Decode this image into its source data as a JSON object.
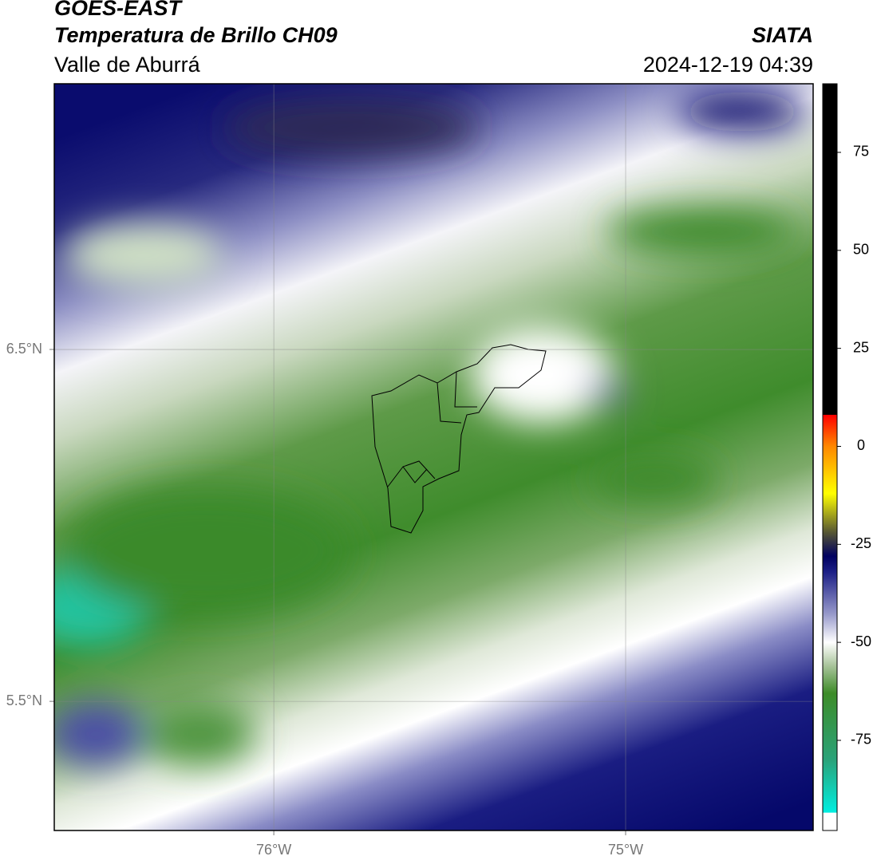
{
  "map": {
    "title": "GOES-EAST",
    "subtitle": "Temperatura de Brillo CH09",
    "region": "Valle de Aburrá",
    "source": "SIATA",
    "datetime": "2024-12-19 04:39",
    "xlim": [
      -76.624,
      -74.467
    ],
    "ylim": [
      5.133,
      7.255
    ],
    "xticks": [
      {
        "value": -76,
        "label": "76°W"
      },
      {
        "value": -75,
        "label": "75°W"
      }
    ],
    "yticks": [
      {
        "value": 5.5,
        "label": "5.5°N"
      },
      {
        "value": 6.5,
        "label": "6.5°N"
      }
    ],
    "grid": true,
    "colorbar": {
      "clim": [
        -98,
        92.5
      ],
      "ticks": [
        75,
        50,
        25,
        0,
        -25,
        -50,
        -75
      ],
      "stops": [
        {
          "value": -98,
          "color": "#ffffff"
        },
        {
          "value": -93.5,
          "color": "#ffffff"
        },
        {
          "value": -93.4,
          "color": "#00eee0"
        },
        {
          "value": -80,
          "color": "#2aa37a"
        },
        {
          "value": -63,
          "color": "#3d8c28"
        },
        {
          "value": -56,
          "color": "#a8c39a"
        },
        {
          "value": -50,
          "color": "#ffffff"
        },
        {
          "value": -43,
          "color": "#9a9ccc"
        },
        {
          "value": -32,
          "color": "#1c1f86"
        },
        {
          "value": -28,
          "color": "#000060"
        },
        {
          "value": -22,
          "color": "#555533"
        },
        {
          "value": -12,
          "color": "#ffff00"
        },
        {
          "value": 0,
          "color": "#ff8800"
        },
        {
          "value": 8,
          "color": "#ff0000"
        },
        {
          "value": 8.1,
          "color": "#000000"
        },
        {
          "value": 92.5,
          "color": "#000000"
        }
      ]
    }
  }
}
